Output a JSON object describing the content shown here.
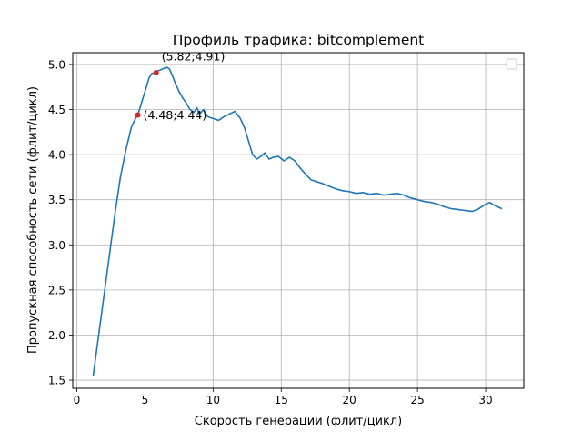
{
  "chart_data": {
    "type": "line",
    "title": "Профиль трафика: bitcomplement",
    "xlabel": "Скорость генерации (флит/цикл)",
    "ylabel": "Пропускная способность сети (флит/цикл)",
    "xlim": [
      -0.3,
      32.8
    ],
    "ylim": [
      1.41,
      5.13
    ],
    "xticks": [
      0,
      5,
      10,
      15,
      20,
      25,
      30
    ],
    "xtick_labels": [
      "0",
      "5",
      "10",
      "15",
      "20",
      "25",
      "30"
    ],
    "yticks": [
      1.5,
      2.0,
      2.5,
      3.0,
      3.5,
      4.0,
      4.5,
      5.0
    ],
    "ytick_labels": [
      "1.5",
      "2.0",
      "2.5",
      "3.0",
      "3.5",
      "4.0",
      "4.5",
      "5.0"
    ],
    "grid": true,
    "legend": "top-right, empty",
    "line_color": "#1f77b4",
    "marker_color": "#d62728",
    "series": [
      {
        "x": [
          1.2,
          1.6,
          2.0,
          2.4,
          2.8,
          3.2,
          3.6,
          4.0,
          4.3,
          4.48,
          4.7,
          5.0,
          5.3,
          5.5,
          5.82,
          6.0,
          6.3,
          6.6,
          6.8,
          7.0,
          7.2,
          7.5,
          7.8,
          8.0,
          8.3,
          8.6,
          8.8,
          9.0,
          9.3,
          9.6,
          10.0,
          10.4,
          10.8,
          11.2,
          11.6,
          12.0,
          12.3,
          12.6,
          12.9,
          13.2,
          13.5,
          13.8,
          14.1,
          14.4,
          14.8,
          15.2,
          15.6,
          16.0,
          16.4,
          16.8,
          17.2,
          17.6,
          18.0,
          18.5,
          19.0,
          19.5,
          20.0,
          20.5,
          21.0,
          21.5,
          22.0,
          22.5,
          23.0,
          23.5,
          24.0,
          24.5,
          25.0,
          25.5,
          26.0,
          26.5,
          27.0,
          27.5,
          28.0,
          28.5,
          29.0,
          29.5,
          30.0,
          30.3,
          30.6,
          30.9,
          31.2
        ],
        "y": [
          1.55,
          2.0,
          2.45,
          2.9,
          3.35,
          3.75,
          4.05,
          4.3,
          4.4,
          4.44,
          4.55,
          4.7,
          4.85,
          4.9,
          4.91,
          4.93,
          4.95,
          4.97,
          4.95,
          4.88,
          4.8,
          4.7,
          4.62,
          4.58,
          4.5,
          4.47,
          4.52,
          4.45,
          4.5,
          4.42,
          4.4,
          4.38,
          4.42,
          4.45,
          4.48,
          4.4,
          4.3,
          4.15,
          4.0,
          3.95,
          3.98,
          4.02,
          3.95,
          3.97,
          3.98,
          3.93,
          3.97,
          3.93,
          3.85,
          3.78,
          3.72,
          3.7,
          3.68,
          3.65,
          3.62,
          3.6,
          3.59,
          3.57,
          3.58,
          3.56,
          3.57,
          3.55,
          3.56,
          3.57,
          3.55,
          3.52,
          3.5,
          3.48,
          3.47,
          3.45,
          3.42,
          3.4,
          3.39,
          3.38,
          3.37,
          3.4,
          3.45,
          3.47,
          3.44,
          3.42,
          3.4
        ]
      }
    ],
    "annotations": [
      {
        "x": 4.48,
        "y": 4.44,
        "text": "(4.48;4.44)"
      },
      {
        "x": 5.82,
        "y": 4.91,
        "text": "(5.82;4.91)"
      }
    ]
  }
}
